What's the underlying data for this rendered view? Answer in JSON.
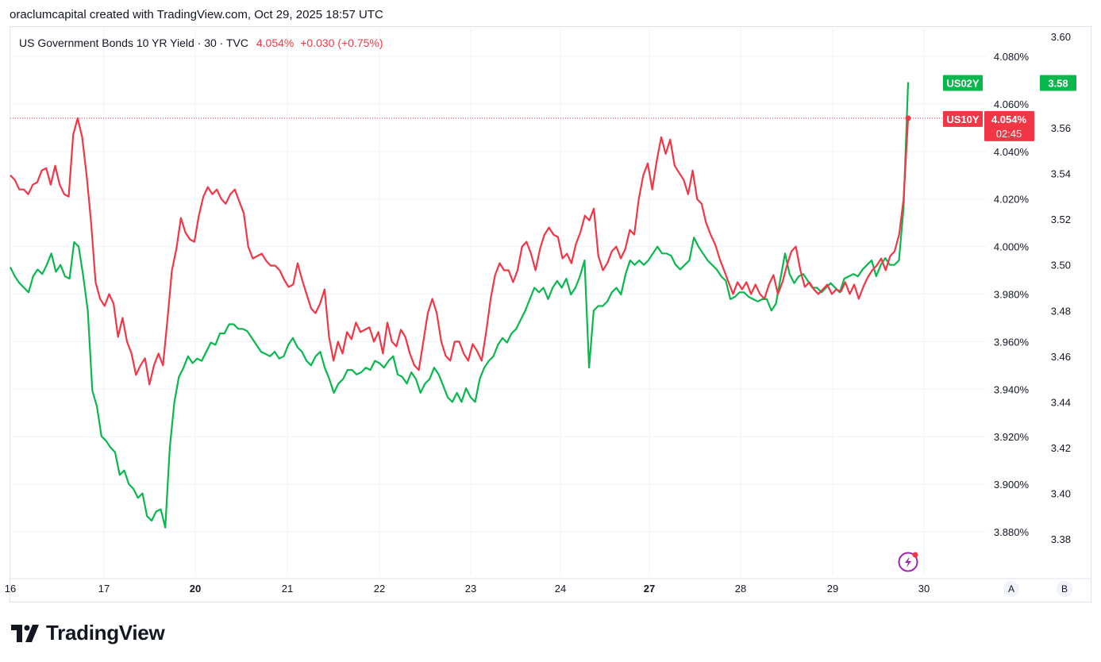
{
  "header": {
    "text": "oraclumcapital created with TradingView.com, Oct 29, 2025 18:57 UTC"
  },
  "legend": {
    "symbol": "US Government Bonds 10 YR Yield · 30 · TVC",
    "price": "4.054%",
    "change": "+0.030 (+0.75%)"
  },
  "scale_buttons": {
    "a": "A",
    "b": "B"
  },
  "logo": {
    "text": "TradingView"
  },
  "colors": {
    "us10y": "#f23645",
    "us02y": "#22ab94",
    "green": "#08b84d",
    "grid": "#f0f3fa"
  },
  "chart_data": {
    "type": "line",
    "x_ticks": [
      {
        "label": "16",
        "bold": false
      },
      {
        "label": "17",
        "bold": false
      },
      {
        "label": "20",
        "bold": true
      },
      {
        "label": "21",
        "bold": false
      },
      {
        "label": "22",
        "bold": false
      },
      {
        "label": "23",
        "bold": false
      },
      {
        "label": "24",
        "bold": false
      },
      {
        "label": "27",
        "bold": true
      },
      {
        "label": "28",
        "bold": false
      },
      {
        "label": "29",
        "bold": false
      },
      {
        "label": "30",
        "bold": false
      }
    ],
    "left_axis": {
      "series": "US10Y",
      "range": [
        3.868,
        4.094
      ],
      "ticks": [
        "4.080%",
        "4.060%",
        "4.040%",
        "4.020%",
        "4.000%",
        "3.980%",
        "3.960%",
        "3.940%",
        "3.920%",
        "3.900%",
        "3.880%"
      ]
    },
    "right_axis": {
      "series": "US02Y",
      "range": [
        3.365,
        3.605
      ],
      "ticks": [
        "3.60",
        "3.58",
        "3.56",
        "3.54",
        "3.52",
        "3.50",
        "3.48",
        "3.46",
        "3.44",
        "3.42",
        "3.40",
        "3.38"
      ]
    },
    "series": [
      {
        "name": "US10Y",
        "badge": "US10Y",
        "last_value": "4.054%",
        "countdown": "02:45",
        "values": [
          4.03,
          4.028,
          4.024,
          4.024,
          4.022,
          4.026,
          4.027,
          4.032,
          4.033,
          4.026,
          4.034,
          4.026,
          4.022,
          4.021,
          4.047,
          4.054,
          4.046,
          4.03,
          4.01,
          3.985,
          3.978,
          3.975,
          3.98,
          3.976,
          3.962,
          3.97,
          3.96,
          3.955,
          3.946,
          3.95,
          3.953,
          3.942,
          3.95,
          3.955,
          3.95,
          3.969,
          3.99,
          3.999,
          4.012,
          4.006,
          4.003,
          4.002,
          4.013,
          4.021,
          4.025,
          4.022,
          4.024,
          4.02,
          4.018,
          4.022,
          4.024,
          4.019,
          4.014,
          4.0,
          3.995,
          3.996,
          3.997,
          3.994,
          3.992,
          3.992,
          3.99,
          3.986,
          3.983,
          3.984,
          3.993,
          3.986,
          3.98,
          3.974,
          3.972,
          3.976,
          3.982,
          3.962,
          3.952,
          3.96,
          3.955,
          3.964,
          3.961,
          3.968,
          3.964,
          3.965,
          3.966,
          3.96,
          3.964,
          3.955,
          3.968,
          3.96,
          3.958,
          3.965,
          3.962,
          3.955,
          3.95,
          3.948,
          3.96,
          3.972,
          3.978,
          3.972,
          3.96,
          3.954,
          3.952,
          3.96,
          3.96,
          3.955,
          3.952,
          3.959,
          3.956,
          3.952,
          3.964,
          3.978,
          3.988,
          3.993,
          3.99,
          3.99,
          3.985,
          3.99,
          4.0,
          4.002,
          3.997,
          3.99,
          3.999,
          4.005,
          4.008,
          4.005,
          4.004,
          3.995,
          3.997,
          3.993,
          4.001,
          4.006,
          4.013,
          4.011,
          4.016,
          3.996,
          3.99,
          3.993,
          3.998,
          4.0,
          3.995,
          3.999,
          4.007,
          4.005,
          4.02,
          4.03,
          4.035,
          4.024,
          4.036,
          4.046,
          4.039,
          4.045,
          4.034,
          4.031,
          4.028,
          4.022,
          4.032,
          4.02,
          4.018,
          4.01,
          4.005,
          4.001,
          3.995,
          3.99,
          3.985,
          3.98,
          3.985,
          3.982,
          3.985,
          3.98,
          3.984,
          3.98,
          3.978,
          3.984,
          3.988,
          3.98,
          3.985,
          3.992,
          3.998,
          4.0,
          3.99,
          3.983,
          3.985,
          3.982,
          3.98,
          3.982,
          3.984,
          3.98,
          3.982,
          3.981,
          3.985,
          3.98,
          3.984,
          3.978,
          3.983,
          3.987,
          3.99,
          3.992,
          3.995,
          3.99,
          3.996,
          3.998,
          4.005,
          4.02,
          4.054
        ],
        "color": "#f23645"
      },
      {
        "name": "US02Y",
        "badge": "US02Y",
        "last_value": "3.58",
        "values": [
          3.499,
          3.495,
          3.492,
          3.49,
          3.488,
          3.495,
          3.498,
          3.496,
          3.5,
          3.505,
          3.497,
          3.5,
          3.495,
          3.494,
          3.51,
          3.508,
          3.495,
          3.48,
          3.445,
          3.438,
          3.425,
          3.423,
          3.42,
          3.418,
          3.408,
          3.41,
          3.404,
          3.402,
          3.398,
          3.4,
          3.39,
          3.388,
          3.392,
          3.393,
          3.385,
          3.42,
          3.44,
          3.451,
          3.455,
          3.46,
          3.457,
          3.459,
          3.458,
          3.462,
          3.466,
          3.465,
          3.47,
          3.47,
          3.474,
          3.474,
          3.472,
          3.472,
          3.471,
          3.468,
          3.465,
          3.462,
          3.461,
          3.46,
          3.462,
          3.459,
          3.46,
          3.465,
          3.468,
          3.464,
          3.462,
          3.458,
          3.456,
          3.46,
          3.462,
          3.455,
          3.45,
          3.444,
          3.448,
          3.45,
          3.454,
          3.454,
          3.452,
          3.453,
          3.455,
          3.454,
          3.458,
          3.457,
          3.455,
          3.458,
          3.46,
          3.452,
          3.451,
          3.448,
          3.453,
          3.45,
          3.444,
          3.448,
          3.45,
          3.455,
          3.452,
          3.447,
          3.442,
          3.44,
          3.444,
          3.44,
          3.446,
          3.442,
          3.44,
          3.45,
          3.455,
          3.458,
          3.46,
          3.465,
          3.468,
          3.466,
          3.47,
          3.472,
          3.476,
          3.48,
          3.485,
          3.49,
          3.488,
          3.49,
          3.485,
          3.49,
          3.493,
          3.49,
          3.494,
          3.487,
          3.49,
          3.495,
          3.502,
          3.455,
          3.48,
          3.482,
          3.482,
          3.484,
          3.488,
          3.49,
          3.487,
          3.496,
          3.502,
          3.5,
          3.502,
          3.5,
          3.502,
          3.505,
          3.508,
          3.505,
          3.505,
          3.504,
          3.5,
          3.498,
          3.5,
          3.502,
          3.512,
          3.508,
          3.505,
          3.502,
          3.5,
          3.498,
          3.495,
          3.493,
          3.485,
          3.486,
          3.488,
          3.488,
          3.486,
          3.485,
          3.484,
          3.485,
          3.485,
          3.48,
          3.483,
          3.494,
          3.505,
          3.496,
          3.492,
          3.495,
          3.496,
          3.493,
          3.49,
          3.49,
          3.488,
          3.49,
          3.492,
          3.49,
          3.488,
          3.494,
          3.495,
          3.496,
          3.495,
          3.498,
          3.5,
          3.502,
          3.495,
          3.5,
          3.503,
          3.5,
          3.5,
          3.502,
          3.525,
          3.58
        ],
        "color": "#08b84d"
      }
    ]
  }
}
